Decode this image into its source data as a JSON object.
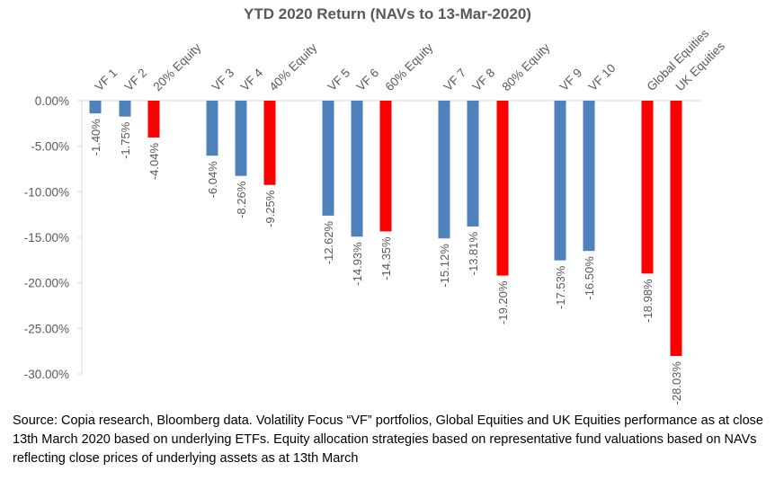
{
  "chart_data": {
    "type": "bar",
    "title": "YTD 2020 Return (NAVs to 13-Mar-2020)",
    "xlabel": "",
    "ylabel": "",
    "ylim": [
      -30,
      0
    ],
    "yticks": [
      0,
      -5,
      -10,
      -15,
      -20,
      -25,
      -30
    ],
    "ytick_labels": [
      "0.00%",
      "-5.00%",
      "-10.00%",
      "-15.00%",
      "-20.00%",
      "-25.00%",
      "-30.00%"
    ],
    "categories": [
      "VF 1",
      "VF 2",
      "20% Equity",
      "VF 3",
      "VF 4",
      "40% Equity",
      "VF 5",
      "VF 6",
      "60% Equity",
      "VF 7",
      "VF 8",
      "80% Equity",
      "VF 9",
      "VF 10",
      "Global Equities",
      "UK Equities"
    ],
    "values": [
      -1.4,
      -1.75,
      -4.04,
      -6.04,
      -8.26,
      -9.25,
      -12.62,
      -14.93,
      -14.35,
      -15.12,
      -13.81,
      -19.2,
      -17.53,
      -16.5,
      -18.98,
      -28.03
    ],
    "data_labels": [
      "-1.40%",
      "-1.75%",
      "-4.04%",
      "-6.04%",
      "-8.26%",
      "-9.25%",
      "-12.62%",
      "-14.93%",
      "-14.35%",
      "-15.12%",
      "-13.81%",
      "-19.20%",
      "-17.53%",
      "-16.50%",
      "-18.98%",
      "-28.03%"
    ],
    "bar_colors": [
      "#4f81bd",
      "#4f81bd",
      "#ff0000",
      "#4f81bd",
      "#4f81bd",
      "#ff0000",
      "#4f81bd",
      "#4f81bd",
      "#ff0000",
      "#4f81bd",
      "#4f81bd",
      "#ff0000",
      "#4f81bd",
      "#4f81bd",
      "#ff0000",
      "#ff0000"
    ],
    "grid": false,
    "legend": "none"
  },
  "colors": {
    "vf_bar": "#4f81bd",
    "equity_bar": "#ff0000",
    "text": "#595959",
    "axis": "#d9d9d9"
  },
  "source_note": "Source: Copia research, Bloomberg data. Volatility Focus “VF” portfolios, Global Equities and UK Equities performance as at close 13th March 2020 based on underlying ETFs.  Equity allocation strategies based on representative fund valuations based on NAVs reflecting close prices of underlying assets as at 13th March"
}
